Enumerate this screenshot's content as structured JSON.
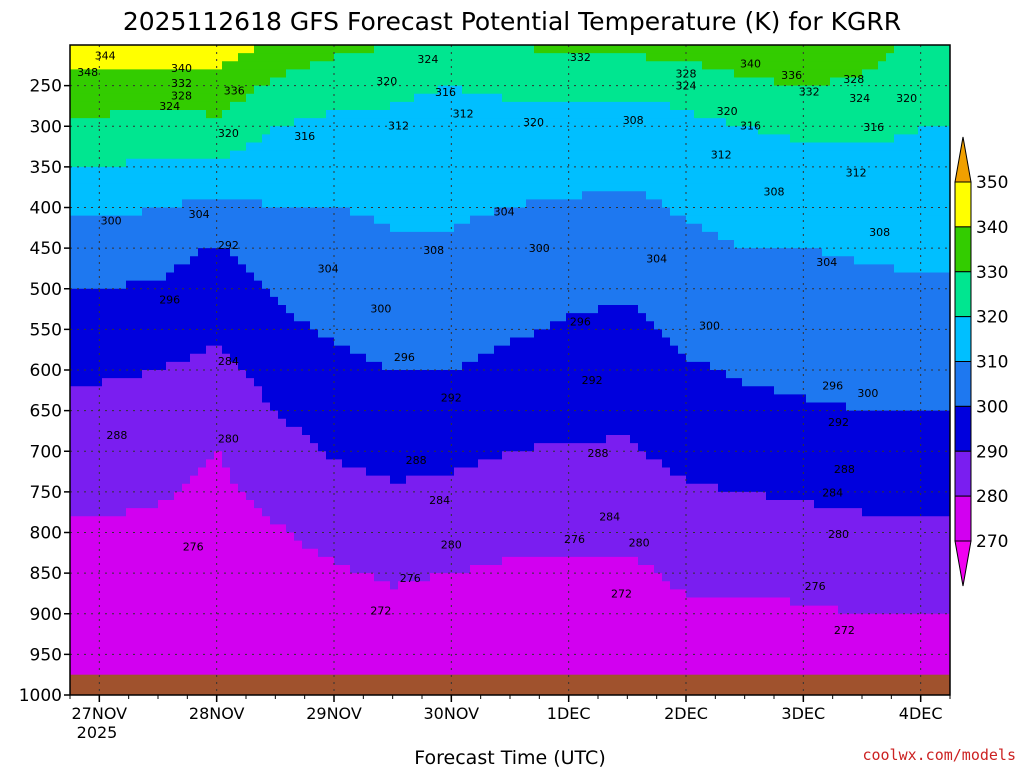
{
  "chart_data": {
    "type": "heatmap",
    "title": "2025112618 GFS Forecast Potential Temperature (K) for KGRR",
    "xlabel": "Forecast Time (UTC)",
    "ylabel": "",
    "credit": "coolwx.com/models",
    "x_ticks": [
      "27NOV",
      "28NOV",
      "29NOV",
      "30NOV",
      "1DEC",
      "2DEC",
      "3DEC",
      "4DEC"
    ],
    "x_year": "2025",
    "y_ticks": [
      250,
      300,
      350,
      400,
      450,
      500,
      550,
      600,
      650,
      700,
      750,
      800,
      850,
      900,
      950,
      1000
    ],
    "y_range": [
      200,
      1000
    ],
    "x_range_days": [
      -0.25,
      7.25
    ],
    "colorbar": {
      "ticks": [
        350,
        340,
        330,
        320,
        310,
        300,
        290,
        280,
        270
      ],
      "levels": [
        {
          "min": 350,
          "color": "#f0a000"
        },
        {
          "min": 340,
          "color": "#ffff00"
        },
        {
          "min": 330,
          "color": "#33cc00"
        },
        {
          "min": 320,
          "color": "#00e690"
        },
        {
          "min": 310,
          "color": "#00bfff"
        },
        {
          "min": 300,
          "color": "#1e78f0"
        },
        {
          "min": 290,
          "color": "#0000dd"
        },
        {
          "min": 280,
          "color": "#7a1ef0"
        },
        {
          "min": 270,
          "color": "#d200f0"
        },
        {
          "min": 0,
          "color": "#f000f0"
        }
      ]
    },
    "ground_color": "#a0522d",
    "surface_pressure": 975,
    "profiles": [
      {
        "t": 0.0,
        "theta": [
          348,
          336,
          328,
          320,
          312,
          305,
          300,
          296,
          291,
          288,
          285,
          282,
          279,
          276,
          273,
          271,
          270
        ]
      },
      {
        "t": 0.5,
        "theta": [
          346,
          334,
          326,
          318,
          310,
          304,
          299,
          295,
          290,
          287,
          284,
          281,
          278,
          276,
          273,
          271,
          270
        ]
      },
      {
        "t": 1.0,
        "theta": [
          346,
          336,
          328,
          318,
          308,
          299,
          295,
          292,
          287,
          283,
          280,
          278,
          276,
          274,
          272,
          271,
          270
        ]
      },
      {
        "t": 1.5,
        "theta": [
          338,
          328,
          320,
          314,
          310,
          304,
          301,
          298,
          294,
          290,
          286,
          283,
          279,
          276,
          273,
          271,
          270
        ]
      },
      {
        "t": 2.0,
        "theta": [
          333,
          323,
          318,
          314,
          310,
          307,
          304,
          301,
          298,
          295,
          291,
          287,
          283,
          279,
          276,
          273,
          272
        ]
      },
      {
        "t": 2.5,
        "theta": [
          330,
          322,
          318,
          314,
          311,
          309,
          306,
          303,
          300,
          297,
          293,
          289,
          285,
          281,
          278,
          275,
          274
        ]
      },
      {
        "t": 3.0,
        "theta": [
          328,
          320,
          316,
          313,
          311,
          309,
          306,
          303,
          300,
          296,
          292,
          288,
          284,
          280,
          276,
          273,
          272
        ]
      },
      {
        "t": 3.5,
        "theta": [
          330,
          322,
          316,
          313,
          310,
          307,
          304,
          301,
          298,
          294,
          290,
          286,
          282,
          279,
          276,
          273,
          272
        ]
      },
      {
        "t": 4.0,
        "theta": [
          332,
          323,
          317,
          313,
          309,
          305,
          302,
          299,
          296,
          293,
          289,
          286,
          282,
          279,
          276,
          273,
          272
        ]
      },
      {
        "t": 4.5,
        "theta": [
          333,
          322,
          316,
          312,
          308,
          304,
          301,
          298,
          295,
          292,
          289,
          285,
          282,
          278,
          275,
          272,
          271
        ]
      },
      {
        "t": 5.0,
        "theta": [
          334,
          323,
          318,
          314,
          311,
          308,
          305,
          302,
          299,
          296,
          293,
          289,
          285,
          282,
          278,
          275,
          273
        ]
      },
      {
        "t": 5.5,
        "theta": [
          338,
          328,
          320,
          316,
          313,
          310,
          307,
          304,
          301,
          298,
          294,
          290,
          286,
          282,
          278,
          275,
          273
        ]
      },
      {
        "t": 6.0,
        "theta": [
          340,
          330,
          322,
          317,
          313,
          310,
          307,
          305,
          302,
          299,
          295,
          291,
          287,
          283,
          279,
          276,
          274
        ]
      },
      {
        "t": 6.5,
        "theta": [
          336,
          328,
          322,
          318,
          314,
          311,
          308,
          306,
          303,
          300,
          296,
          292,
          288,
          284,
          280,
          276,
          274
        ]
      },
      {
        "t": 7.0,
        "theta": [
          326,
          322,
          320,
          318,
          315,
          312,
          309,
          306,
          303,
          300,
          296,
          292,
          288,
          284,
          280,
          276,
          274
        ]
      },
      {
        "t": 7.25,
        "theta": [
          326,
          322,
          320,
          318,
          315,
          312,
          309,
          306,
          303,
          300,
          296,
          292,
          288,
          284,
          280,
          276,
          274
        ]
      }
    ],
    "profile_pressures": [
      200,
      250,
      300,
      350,
      400,
      450,
      500,
      550,
      600,
      650,
      700,
      750,
      800,
      850,
      900,
      950,
      1000
    ],
    "annotations": [
      {
        "text": "344",
        "t": 0.05,
        "p": 213
      },
      {
        "text": "340",
        "t": 0.7,
        "p": 228
      },
      {
        "text": "348",
        "t": -0.1,
        "p": 233
      },
      {
        "text": "332",
        "t": 0.7,
        "p": 247
      },
      {
        "text": "328",
        "t": 0.7,
        "p": 262
      },
      {
        "text": "336",
        "t": 1.15,
        "p": 256
      },
      {
        "text": "324",
        "t": 0.6,
        "p": 275
      },
      {
        "text": "320",
        "t": 1.1,
        "p": 308
      },
      {
        "text": "316",
        "t": 1.75,
        "p": 312
      },
      {
        "text": "324",
        "t": 2.8,
        "p": 217
      },
      {
        "text": "320",
        "t": 2.45,
        "p": 244
      },
      {
        "text": "316",
        "t": 2.95,
        "p": 258
      },
      {
        "text": "312",
        "t": 2.55,
        "p": 299
      },
      {
        "text": "312",
        "t": 3.1,
        "p": 284
      },
      {
        "text": "320",
        "t": 3.7,
        "p": 295
      },
      {
        "text": "332",
        "t": 4.1,
        "p": 215
      },
      {
        "text": "308",
        "t": 4.55,
        "p": 292
      },
      {
        "text": "328",
        "t": 5.0,
        "p": 235
      },
      {
        "text": "324",
        "t": 5.0,
        "p": 250
      },
      {
        "text": "320",
        "t": 5.35,
        "p": 281
      },
      {
        "text": "316",
        "t": 5.55,
        "p": 299
      },
      {
        "text": "312",
        "t": 5.3,
        "p": 335
      },
      {
        "text": "340",
        "t": 5.55,
        "p": 223
      },
      {
        "text": "336",
        "t": 5.9,
        "p": 237
      },
      {
        "text": "332",
        "t": 6.05,
        "p": 257
      },
      {
        "text": "328",
        "t": 6.43,
        "p": 242
      },
      {
        "text": "324",
        "t": 6.48,
        "p": 265
      },
      {
        "text": "320",
        "t": 6.88,
        "p": 265
      },
      {
        "text": "316",
        "t": 6.6,
        "p": 301
      },
      {
        "text": "312",
        "t": 6.45,
        "p": 357
      },
      {
        "text": "308",
        "t": 5.75,
        "p": 380
      },
      {
        "text": "308",
        "t": 6.65,
        "p": 430
      },
      {
        "text": "304",
        "t": 6.2,
        "p": 467
      },
      {
        "text": "300",
        "t": 0.1,
        "p": 416
      },
      {
        "text": "304",
        "t": 0.85,
        "p": 408
      },
      {
        "text": "292",
        "t": 1.1,
        "p": 446
      },
      {
        "text": "296",
        "t": 0.6,
        "p": 513
      },
      {
        "text": "304",
        "t": 1.95,
        "p": 475
      },
      {
        "text": "308",
        "t": 2.85,
        "p": 452
      },
      {
        "text": "304",
        "t": 3.45,
        "p": 405
      },
      {
        "text": "300",
        "t": 3.75,
        "p": 450
      },
      {
        "text": "300",
        "t": 2.4,
        "p": 524
      },
      {
        "text": "304",
        "t": 4.75,
        "p": 463
      },
      {
        "text": "296",
        "t": 2.6,
        "p": 584
      },
      {
        "text": "296",
        "t": 4.1,
        "p": 540
      },
      {
        "text": "300",
        "t": 5.2,
        "p": 545
      },
      {
        "text": "292",
        "t": 3.0,
        "p": 634
      },
      {
        "text": "292",
        "t": 4.2,
        "p": 612
      },
      {
        "text": "296",
        "t": 6.25,
        "p": 619
      },
      {
        "text": "300",
        "t": 6.55,
        "p": 628
      },
      {
        "text": "292",
        "t": 6.3,
        "p": 664
      },
      {
        "text": "284",
        "t": 1.1,
        "p": 589
      },
      {
        "text": "288",
        "t": 0.15,
        "p": 680
      },
      {
        "text": "280",
        "t": 1.1,
        "p": 684
      },
      {
        "text": "288",
        "t": 2.7,
        "p": 711
      },
      {
        "text": "288",
        "t": 4.25,
        "p": 702
      },
      {
        "text": "288",
        "t": 6.35,
        "p": 722
      },
      {
        "text": "284",
        "t": 2.9,
        "p": 760
      },
      {
        "text": "284",
        "t": 4.35,
        "p": 780
      },
      {
        "text": "284",
        "t": 6.25,
        "p": 751
      },
      {
        "text": "280",
        "t": 3.0,
        "p": 815
      },
      {
        "text": "280",
        "t": 4.6,
        "p": 812
      },
      {
        "text": "280",
        "t": 6.3,
        "p": 802
      },
      {
        "text": "276",
        "t": 0.8,
        "p": 817
      },
      {
        "text": "276",
        "t": 2.65,
        "p": 856
      },
      {
        "text": "276",
        "t": 4.05,
        "p": 808
      },
      {
        "text": "276",
        "t": 6.1,
        "p": 866
      },
      {
        "text": "272",
        "t": 2.4,
        "p": 896
      },
      {
        "text": "272",
        "t": 4.45,
        "p": 875
      },
      {
        "text": "272",
        "t": 6.35,
        "p": 920
      }
    ]
  }
}
